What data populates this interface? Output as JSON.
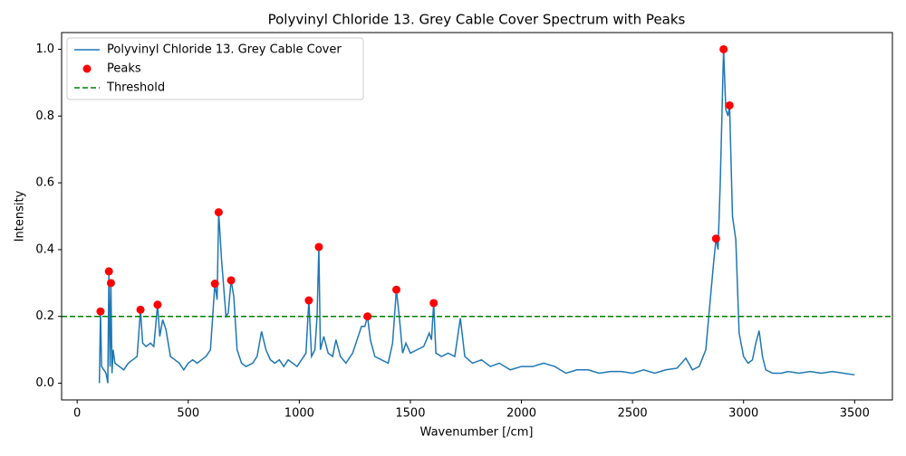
{
  "chart_data": {
    "type": "line",
    "title": "Polyvinyl Chloride 13. Grey Cable Cover Spectrum with Peaks",
    "x_label": "Wavenumber [/cm]",
    "y_label": "Intensity",
    "xlim": [
      -70,
      3670
    ],
    "ylim": [
      -0.05,
      1.05
    ],
    "xticks": [
      0,
      500,
      1000,
      1500,
      2000,
      2500,
      3000,
      3500
    ],
    "yticks": [
      {
        "value": 0,
        "label": "0.0"
      },
      0.2,
      0.4,
      0.6,
      0.8,
      {
        "value": 1,
        "label": "1.0"
      }
    ],
    "legend": "upper left",
    "series": [
      {
        "name": "Polyvinyl Chloride 13. Grey Cable Cover",
        "color": "#1f77b4",
        "x": [
          100,
          105,
          110,
          120,
          130,
          138,
          143,
          148,
          152,
          157,
          162,
          170,
          190,
          210,
          230,
          250,
          270,
          285,
          295,
          310,
          330,
          345,
          362,
          372,
          385,
          400,
          420,
          440,
          460,
          480,
          500,
          520,
          540,
          560,
          580,
          600,
          620,
          630,
          637,
          650,
          670,
          680,
          693,
          705,
          720,
          740,
          760,
          790,
          810,
          830,
          850,
          870,
          890,
          910,
          930,
          950,
          970,
          990,
          1010,
          1030,
          1043,
          1055,
          1070,
          1080,
          1088,
          1095,
          1110,
          1130,
          1150,
          1165,
          1185,
          1210,
          1240,
          1260,
          1280,
          1295,
          1307,
          1320,
          1340,
          1370,
          1400,
          1420,
          1437,
          1450,
          1465,
          1480,
          1500,
          1530,
          1560,
          1585,
          1595,
          1605,
          1615,
          1640,
          1670,
          1700,
          1725,
          1745,
          1780,
          1820,
          1860,
          1900,
          1950,
          2000,
          2050,
          2100,
          2150,
          2200,
          2250,
          2300,
          2350,
          2400,
          2450,
          2500,
          2550,
          2600,
          2650,
          2700,
          2740,
          2770,
          2800,
          2830,
          2850,
          2865,
          2876,
          2885,
          2895,
          2910,
          2920,
          2930,
          2937,
          2950,
          2965,
          2980,
          3000,
          3020,
          3040,
          3055,
          3070,
          3085,
          3100,
          3130,
          3170,
          3200,
          3250,
          3300,
          3350,
          3400,
          3450,
          3500
        ],
        "values": [
          0.0,
          0.215,
          0.05,
          0.04,
          0.03,
          0.0,
          0.335,
          0.05,
          0.3,
          0.03,
          0.1,
          0.06,
          0.05,
          0.04,
          0.06,
          0.07,
          0.08,
          0.22,
          0.12,
          0.11,
          0.12,
          0.11,
          0.235,
          0.14,
          0.19,
          0.16,
          0.08,
          0.07,
          0.06,
          0.04,
          0.06,
          0.07,
          0.06,
          0.07,
          0.08,
          0.1,
          0.298,
          0.25,
          0.512,
          0.37,
          0.2,
          0.21,
          0.308,
          0.26,
          0.1,
          0.06,
          0.05,
          0.06,
          0.08,
          0.155,
          0.1,
          0.07,
          0.06,
          0.07,
          0.05,
          0.07,
          0.06,
          0.05,
          0.07,
          0.09,
          0.248,
          0.08,
          0.1,
          0.2,
          0.408,
          0.1,
          0.14,
          0.09,
          0.08,
          0.13,
          0.08,
          0.06,
          0.09,
          0.13,
          0.17,
          0.17,
          0.2,
          0.13,
          0.08,
          0.07,
          0.06,
          0.12,
          0.28,
          0.2,
          0.09,
          0.12,
          0.09,
          0.1,
          0.11,
          0.15,
          0.13,
          0.24,
          0.09,
          0.08,
          0.09,
          0.08,
          0.195,
          0.08,
          0.06,
          0.07,
          0.05,
          0.06,
          0.04,
          0.05,
          0.05,
          0.06,
          0.05,
          0.03,
          0.04,
          0.04,
          0.03,
          0.035,
          0.035,
          0.03,
          0.04,
          0.03,
          0.04,
          0.045,
          0.075,
          0.04,
          0.05,
          0.1,
          0.25,
          0.36,
          0.433,
          0.4,
          0.6,
          1.0,
          0.82,
          0.8,
          0.832,
          0.5,
          0.43,
          0.15,
          0.08,
          0.06,
          0.07,
          0.12,
          0.157,
          0.08,
          0.04,
          0.03,
          0.03,
          0.035,
          0.03,
          0.035,
          0.03,
          0.035,
          0.03,
          0.025
        ]
      }
    ],
    "peaks": {
      "name": "Peaks",
      "color": "#ff0000",
      "x": [
        105,
        143,
        152,
        285,
        362,
        620,
        637,
        693,
        1043,
        1088,
        1307,
        1437,
        1605,
        2876,
        2910,
        2937
      ],
      "values": [
        0.215,
        0.335,
        0.3,
        0.22,
        0.235,
        0.298,
        0.512,
        0.308,
        0.248,
        0.408,
        0.2,
        0.28,
        0.24,
        0.433,
        1.0,
        0.832
      ]
    },
    "threshold": {
      "name": "Threshold",
      "color": "#008000",
      "value": 0.2
    }
  }
}
